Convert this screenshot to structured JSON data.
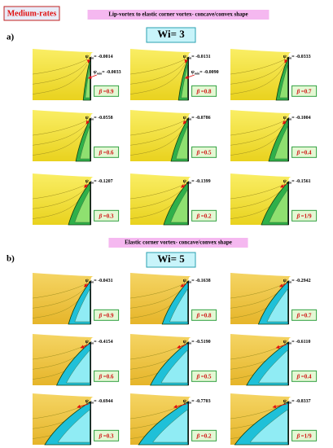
{
  "header": {
    "title": "Medium-rates"
  },
  "psi_symbol": "ψ",
  "psi_sub": "min",
  "psi_eq": "=",
  "beta_symbol": "β",
  "beta_eq": "=",
  "sections": [
    {
      "label": "a)",
      "title": "Lip-vortex to elastic corner vortex- concave/convex shape",
      "wi": "Wi= 3",
      "panels": [
        {
          "psi": [
            "-0.0014",
            "-0.0033"
          ],
          "beta": "0.9"
        },
        {
          "psi": [
            "-0.0131",
            "-0.0090"
          ],
          "beta": "0.8"
        },
        {
          "psi": [
            "-0.0333"
          ],
          "beta": "0.7"
        },
        {
          "psi": [
            "-0.0558"
          ],
          "beta": "0.6"
        },
        {
          "psi": [
            "-0.0786"
          ],
          "beta": "0.5"
        },
        {
          "psi": [
            "-0.1004"
          ],
          "beta": "0.4"
        },
        {
          "psi": [
            "-0.1207"
          ],
          "beta": "0.3"
        },
        {
          "psi": [
            "-0.1399"
          ],
          "beta": "0.2"
        },
        {
          "psi": [
            "-0.1561"
          ],
          "beta": "1/9"
        }
      ]
    },
    {
      "label": "b)",
      "title": "Elastic corner vortex- concave/convex shape",
      "wi": "Wi= 5",
      "panels": [
        {
          "psi": [
            "-0.0431"
          ],
          "beta": "0.9"
        },
        {
          "psi": [
            "-0.1638"
          ],
          "beta": "0.8"
        },
        {
          "psi": [
            "-0.2942"
          ],
          "beta": "0.7"
        },
        {
          "psi": [
            "-0.4154"
          ],
          "beta": "0.6"
        },
        {
          "psi": [
            "-0.5190"
          ],
          "beta": "0.5"
        },
        {
          "psi": [
            "-0.6110"
          ],
          "beta": "0.4"
        },
        {
          "psi": [
            "-0.6944"
          ],
          "beta": "0.3"
        },
        {
          "psi": [
            "-0.7703"
          ],
          "beta": "0.2"
        },
        {
          "psi": [
            "-0.8337"
          ],
          "beta": "1/9"
        }
      ]
    }
  ]
}
